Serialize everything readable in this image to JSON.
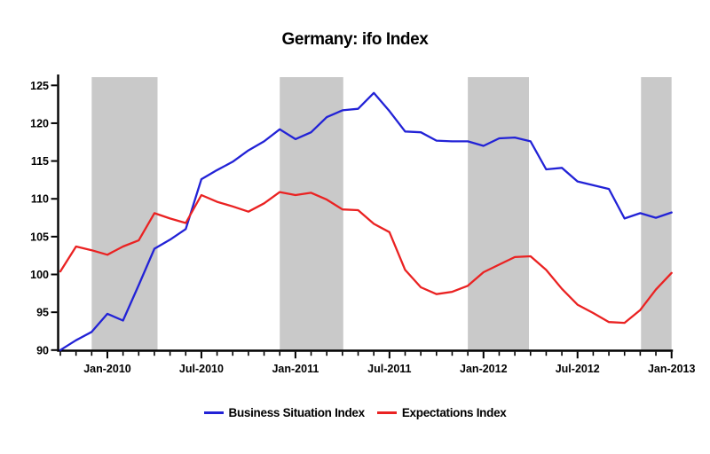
{
  "title": "Germany: ifo Index",
  "chart_data": {
    "type": "line",
    "months": [
      "Oct-2009",
      "Nov-2009",
      "Dec-2009",
      "Jan-2010",
      "Feb-2010",
      "Mar-2010",
      "Apr-2010",
      "May-2010",
      "Jun-2010",
      "Jul-2010",
      "Aug-2010",
      "Sep-2010",
      "Oct-2010",
      "Nov-2010",
      "Dec-2010",
      "Jan-2011",
      "Feb-2011",
      "Mar-2011",
      "Apr-2011",
      "May-2011",
      "Jun-2011",
      "Jul-2011",
      "Aug-2011",
      "Sep-2011",
      "Oct-2011",
      "Nov-2011",
      "Dec-2011",
      "Jan-2012",
      "Feb-2012",
      "Mar-2012",
      "Apr-2012",
      "May-2012",
      "Jun-2012",
      "Jul-2012",
      "Aug-2012",
      "Sep-2012",
      "Oct-2012",
      "Nov-2012",
      "Dec-2012",
      "Jan-2013"
    ],
    "series": [
      {
        "name": "Business Situation Index",
        "color": "#2222d6",
        "values": [
          90.0,
          91.3,
          92.4,
          94.8,
          93.9,
          98.6,
          103.4,
          104.6,
          106.0,
          112.6,
          113.8,
          114.9,
          116.4,
          117.6,
          119.2,
          117.9,
          118.8,
          120.8,
          121.7,
          121.9,
          124.0,
          121.6,
          118.9,
          118.8,
          117.7,
          117.6,
          117.6,
          117.0,
          118.0,
          118.1,
          117.6,
          113.9,
          114.1,
          112.3,
          111.8,
          111.3,
          107.4,
          108.1,
          107.5,
          108.2
        ]
      },
      {
        "name": "Expectations Index",
        "color": "#ea2222",
        "values": [
          100.4,
          103.7,
          103.2,
          102.6,
          103.7,
          104.5,
          108.1,
          107.4,
          106.8,
          110.5,
          109.6,
          109.0,
          108.3,
          109.4,
          110.9,
          110.5,
          110.8,
          109.9,
          108.6,
          108.5,
          106.7,
          105.6,
          100.6,
          98.3,
          97.4,
          97.7,
          98.5,
          100.3,
          101.3,
          102.3,
          102.4,
          100.6,
          98.1,
          96.0,
          94.9,
          93.7,
          93.6,
          95.3,
          98.0,
          100.2
        ]
      }
    ],
    "ylim": [
      90,
      125
    ],
    "y_ticks": [
      90,
      95,
      100,
      105,
      110,
      115,
      120,
      125
    ],
    "x_tick_labels": [
      "Jan-2010",
      "Jul-2010",
      "Jan-2011",
      "Jul-2011",
      "Jan-2012",
      "Jul-2012",
      "Jan-2013"
    ],
    "x_major_tick_month_indices": [
      3,
      9,
      15,
      21,
      27,
      33,
      39
    ],
    "minor_ticks": "monthly",
    "grid": "off",
    "legend_position": "bottom-center",
    "shaded_bands_month_ranges": [
      [
        2.0,
        6.2
      ],
      [
        14.0,
        18.05
      ],
      [
        26.0,
        29.9
      ],
      [
        37.05,
        39.0
      ]
    ],
    "band_color": "#c9c9c9",
    "axis_color": "#000000"
  },
  "legend": {
    "items": [
      {
        "label": "Business Situation Index",
        "color": "#2222d6"
      },
      {
        "label": "Expectations Index",
        "color": "#ea2222"
      }
    ]
  }
}
